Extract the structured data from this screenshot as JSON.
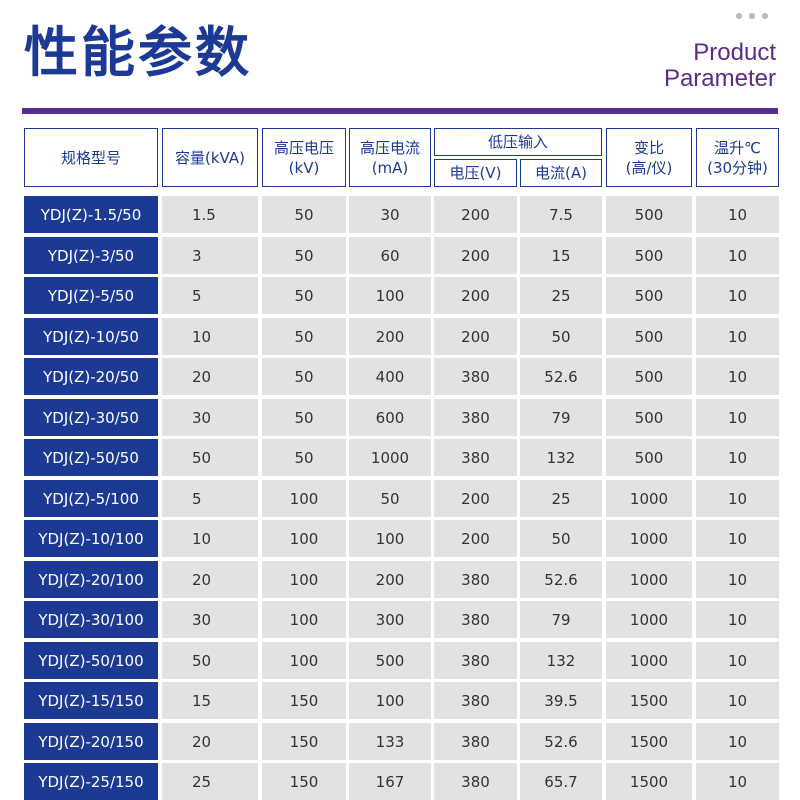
{
  "title": "性能参数",
  "subtitle_en": [
    "Product",
    "Parameter"
  ],
  "table": {
    "headers": {
      "spec": "规格型号",
      "capacity": "容量(kVA)",
      "hv_voltage": [
        "高压电压",
        "(kV)"
      ],
      "hv_current": [
        "高压电流",
        "(mA)"
      ],
      "lv_input": "低压输入",
      "lv_voltage": "电压(V)",
      "lv_current": "电流(A)",
      "ratio": [
        "变比",
        "(高/仪)"
      ],
      "temp_rise": [
        "温升℃",
        "(30分钟)"
      ]
    },
    "rows": [
      [
        "YDJ(Z)-1.5/50",
        "1.5",
        "50",
        "30",
        "200",
        "7.5",
        "500",
        "10"
      ],
      [
        "YDJ(Z)-3/50",
        "3",
        "50",
        "60",
        "200",
        "15",
        "500",
        "10"
      ],
      [
        "YDJ(Z)-5/50",
        "5",
        "50",
        "100",
        "200",
        "25",
        "500",
        "10"
      ],
      [
        "YDJ(Z)-10/50",
        "10",
        "50",
        "200",
        "200",
        "50",
        "500",
        "10"
      ],
      [
        "YDJ(Z)-20/50",
        "20",
        "50",
        "400",
        "380",
        "52.6",
        "500",
        "10"
      ],
      [
        "YDJ(Z)-30/50",
        "30",
        "50",
        "600",
        "380",
        "79",
        "500",
        "10"
      ],
      [
        "YDJ(Z)-50/50",
        "50",
        "50",
        "1000",
        "380",
        "132",
        "500",
        "10"
      ],
      [
        "YDJ(Z)-5/100",
        "5",
        "100",
        "50",
        "200",
        "25",
        "1000",
        "10"
      ],
      [
        "YDJ(Z)-10/100",
        "10",
        "100",
        "100",
        "200",
        "50",
        "1000",
        "10"
      ],
      [
        "YDJ(Z)-20/100",
        "20",
        "100",
        "200",
        "380",
        "52.6",
        "1000",
        "10"
      ],
      [
        "YDJ(Z)-30/100",
        "30",
        "100",
        "300",
        "380",
        "79",
        "1000",
        "10"
      ],
      [
        "YDJ(Z)-50/100",
        "50",
        "100",
        "500",
        "380",
        "132",
        "1000",
        "10"
      ],
      [
        "YDJ(Z)-15/150",
        "15",
        "150",
        "100",
        "380",
        "39.5",
        "1500",
        "10"
      ],
      [
        "YDJ(Z)-20/150",
        "20",
        "150",
        "133",
        "380",
        "52.6",
        "1500",
        "10"
      ],
      [
        "YDJ(Z)-25/150",
        "25",
        "150",
        "167",
        "380",
        "65.7",
        "1500",
        "10"
      ]
    ]
  },
  "colors": {
    "brand_blue": "#1c3a94",
    "purple": "#5b2d90",
    "cell_gray": "#e2e2e2"
  },
  "icons": [
    "more-dots-icon"
  ]
}
